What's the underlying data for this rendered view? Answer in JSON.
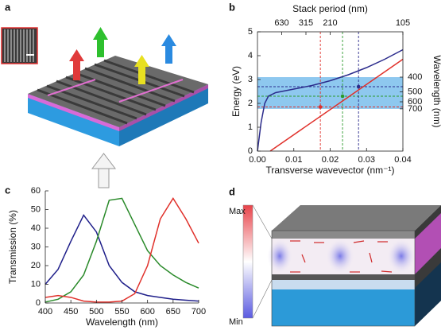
{
  "panel_labels": [
    "a",
    "b",
    "c",
    "d"
  ],
  "colorbar": {
    "max_label": "Max",
    "min_label": "Min"
  },
  "chart_data": [
    {
      "type": "line",
      "frame": "box",
      "xlabel": "Transverse wavevector (nm⁻¹)",
      "ylabel": "Energy (eV)",
      "x2label": "Stack period (nm)",
      "y2label": "Wavelength (nm)",
      "xlim": [
        0,
        0.04
      ],
      "xticks": [
        {
          "value": 0,
          "label": "0.00"
        },
        0.01,
        0.02,
        0.03,
        0.04
      ],
      "ylim": [
        0,
        5
      ],
      "yticks": [
        0,
        1,
        2,
        3,
        4,
        5
      ],
      "x2scale": "reciprocal",
      "x2lim": [
        null,
        105
      ],
      "x2ticks": [
        630,
        315,
        210,
        105
      ],
      "y2scale": "reciprocal",
      "y2lim": [
        null,
        248
      ],
      "y2ticks": [
        400,
        500,
        600,
        700
      ],
      "shaded_band": {
        "range": [
          1.77,
          3.1
        ],
        "color": "#8ec8ef"
      },
      "series": [
        {
          "color": "#2b2b8c",
          "x": [
            0,
            0.0005,
            0.001,
            0.002,
            0.003,
            0.005,
            0.01,
            0.015,
            0.02,
            0.025,
            0.03,
            0.035,
            0.04
          ],
          "values": [
            0,
            0.6,
            1.2,
            2.0,
            2.3,
            2.45,
            2.6,
            2.75,
            2.95,
            3.2,
            3.5,
            3.85,
            4.25
          ]
        },
        {
          "color": "#e0302a",
          "x": [
            0.0035,
            0.04
          ],
          "values": [
            0,
            3.85
          ]
        }
      ],
      "markers": [
        {
          "x": 0.0173,
          "y": 1.85,
          "color": "#e0302a"
        },
        {
          "x": 0.0234,
          "y": 2.3,
          "color": "#2a9a2a"
        },
        {
          "x": 0.0278,
          "y": 2.7,
          "color": "#2b2b8c"
        }
      ]
    },
    {
      "type": "line",
      "frame": "axes",
      "xlabel": "Wavelength (nm)",
      "ylabel": "Transmission (%)",
      "x": [
        400,
        425,
        450,
        475,
        500,
        525,
        550,
        575,
        600,
        625,
        650,
        675,
        700
      ],
      "xlim": [
        400,
        700
      ],
      "xticks": [
        400,
        450,
        500,
        550,
        600,
        650,
        700
      ],
      "ylim": [
        0,
        60
      ],
      "yticks": [
        0,
        10,
        20,
        30,
        40,
        50,
        60
      ],
      "series": [
        {
          "color": "#1f1f8a",
          "values": [
            10,
            18,
            33,
            47,
            38,
            20,
            11,
            6,
            4,
            3,
            2,
            1.5,
            1
          ]
        },
        {
          "color": "#2a8a2a",
          "values": [
            0.5,
            2,
            6,
            15,
            33,
            55,
            56,
            42,
            28,
            20,
            15,
            11,
            8
          ]
        },
        {
          "color": "#e0302a",
          "values": [
            3,
            4,
            3,
            1,
            0.5,
            0.5,
            1,
            5,
            20,
            45,
            56,
            45,
            32
          ]
        }
      ]
    }
  ]
}
